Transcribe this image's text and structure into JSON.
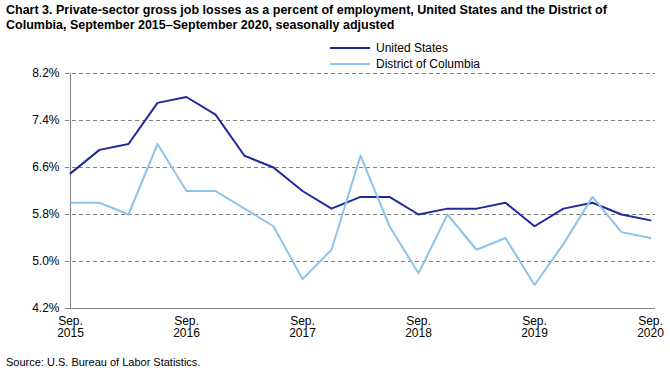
{
  "chart_data": {
    "type": "line",
    "title": "Chart 3. Private-sector gross job losses as a percent of employment, United States and the District of Columbia, September 2015–September 2020, seasonally adjusted",
    "source": "Source: U.S. Bureau of Labor Statistics.",
    "categories": [
      "Sep.\n2015",
      null,
      null,
      null,
      "Sep.\n2016",
      null,
      null,
      null,
      "Sep.\n2017",
      null,
      null,
      null,
      "Sep.\n2018",
      null,
      null,
      null,
      "Sep.\n2019",
      null,
      null,
      null,
      "Sep.\n2020"
    ],
    "series": [
      {
        "name": "United States",
        "color": "#1f2a9a",
        "values": [
          6.5,
          6.9,
          7.0,
          7.7,
          7.8,
          7.5,
          6.8,
          6.6,
          6.2,
          5.9,
          6.1,
          6.1,
          5.8,
          5.9,
          5.9,
          6.0,
          5.6,
          5.9,
          6.0,
          5.8,
          5.7
        ]
      },
      {
        "name": "District of Columbia",
        "color": "#8ec3ea",
        "values": [
          6.0,
          6.0,
          5.8,
          7.0,
          6.2,
          6.2,
          5.9,
          5.6,
          4.7,
          5.2,
          6.8,
          5.6,
          4.8,
          5.8,
          5.2,
          5.4,
          4.6,
          5.3,
          6.1,
          5.5,
          5.4
        ]
      }
    ],
    "ylim": [
      4.2,
      8.2
    ],
    "yticks": [
      {
        "value": 4.2,
        "label": "4.2%"
      },
      {
        "value": 5.0,
        "label": "5.0%"
      },
      {
        "value": 5.8,
        "label": "5.8%"
      },
      {
        "value": 6.6,
        "label": "6.6%"
      },
      {
        "value": 7.4,
        "label": "7.4%"
      },
      {
        "value": 8.2,
        "label": "8.2%"
      }
    ],
    "grid": true,
    "legend": "top"
  }
}
